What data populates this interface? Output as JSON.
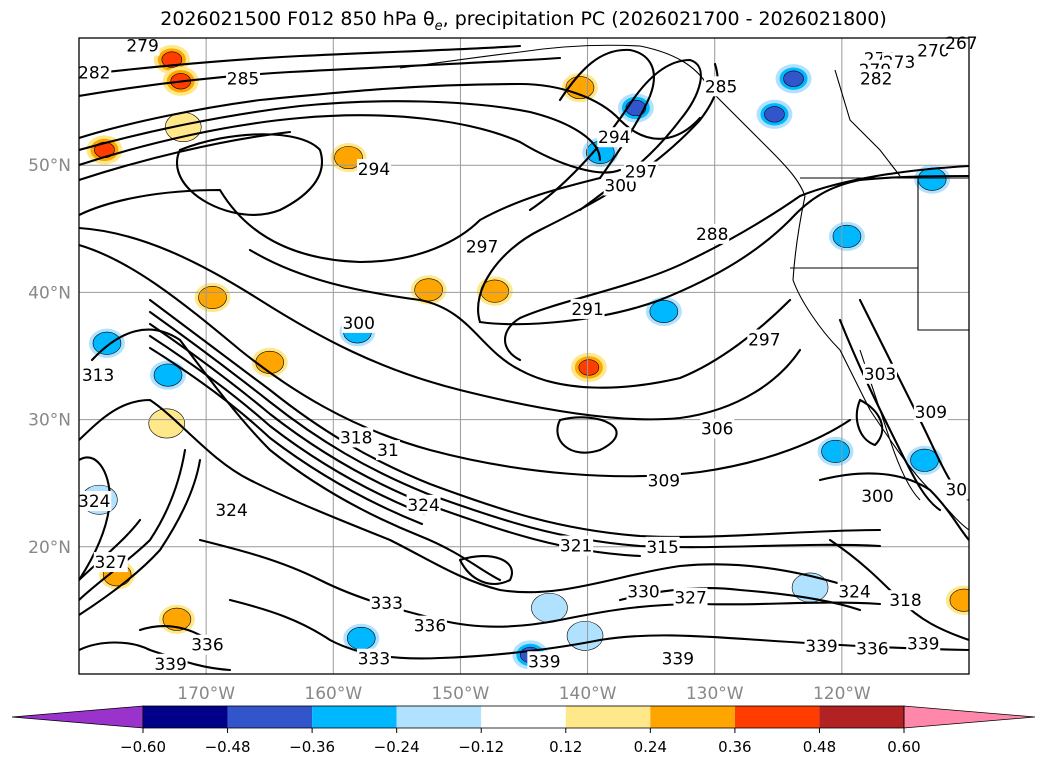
{
  "chart_data": {
    "type": "contour map",
    "title": "2026021500 F012 850 hPa θe, precipitation PC (2026021700 - 2026021800)",
    "lat_range": [
      10,
      60
    ],
    "lon_range": [
      -180,
      -110
    ],
    "lat_ticks": [
      "20°N",
      "30°N",
      "40°N",
      "50°N"
    ],
    "lon_ticks": [
      "170°W",
      "160°W",
      "150°W",
      "140°W",
      "130°W",
      "120°W"
    ],
    "grid": true,
    "contour_labels": [
      {
        "text": "279",
        "lon": -175.0,
        "lat": 59.4
      },
      {
        "text": "282",
        "lon": -178.8,
        "lat": 57.3
      },
      {
        "text": "285",
        "lon": -167.1,
        "lat": 56.8
      },
      {
        "text": "294",
        "lon": -156.8,
        "lat": 49.7
      },
      {
        "text": "294",
        "lon": -137.9,
        "lat": 52.2
      },
      {
        "text": "300",
        "lon": -137.4,
        "lat": 48.4
      },
      {
        "text": "297",
        "lon": -135.8,
        "lat": 49.5
      },
      {
        "text": "297",
        "lon": -148.3,
        "lat": 43.6
      },
      {
        "text": "288",
        "lon": -130.2,
        "lat": 44.6
      },
      {
        "text": "285",
        "lon": -129.5,
        "lat": 56.2
      },
      {
        "text": "291",
        "lon": -140.0,
        "lat": 38.7
      },
      {
        "text": "300",
        "lon": -158.0,
        "lat": 37.6
      },
      {
        "text": "297",
        "lon": -126.1,
        "lat": 36.3
      },
      {
        "text": "306",
        "lon": -129.8,
        "lat": 29.3
      },
      {
        "text": "309",
        "lon": -134.0,
        "lat": 25.2
      },
      {
        "text": "318",
        "lon": -158.2,
        "lat": 28.6
      },
      {
        "text": "31",
        "lon": -155.7,
        "lat": 27.6
      },
      {
        "text": "324",
        "lon": -152.9,
        "lat": 23.3
      },
      {
        "text": "324",
        "lon": -178.8,
        "lat": 23.6
      },
      {
        "text": "324",
        "lon": -168.0,
        "lat": 22.9
      },
      {
        "text": "327",
        "lon": -177.5,
        "lat": 18.8
      },
      {
        "text": "321",
        "lon": -140.9,
        "lat": 20.1
      },
      {
        "text": "315",
        "lon": -134.1,
        "lat": 20.0
      },
      {
        "text": "330",
        "lon": -135.6,
        "lat": 16.5
      },
      {
        "text": "327",
        "lon": -131.9,
        "lat": 16.0
      },
      {
        "text": "333",
        "lon": -155.8,
        "lat": 15.6
      },
      {
        "text": "336",
        "lon": -152.4,
        "lat": 13.8
      },
      {
        "text": "336",
        "lon": -169.9,
        "lat": 12.3
      },
      {
        "text": "339",
        "lon": -172.8,
        "lat": 10.8
      },
      {
        "text": "333",
        "lon": -156.8,
        "lat": 11.2
      },
      {
        "text": "339",
        "lon": -143.4,
        "lat": 11.0
      },
      {
        "text": "339",
        "lon": -132.9,
        "lat": 11.2
      },
      {
        "text": "339",
        "lon": -121.6,
        "lat": 12.2
      },
      {
        "text": "336",
        "lon": -117.6,
        "lat": 12.0
      },
      {
        "text": "339",
        "lon": -113.6,
        "lat": 12.4
      },
      {
        "text": "300",
        "lon": -117.2,
        "lat": 24.0
      },
      {
        "text": "303",
        "lon": -117.0,
        "lat": 33.6
      },
      {
        "text": "309",
        "lon": -113.0,
        "lat": 30.6
      },
      {
        "text": "30",
        "lon": -111.0,
        "lat": 24.5
      },
      {
        "text": "324",
        "lon": -119.0,
        "lat": 16.5
      },
      {
        "text": "318",
        "lon": -115.0,
        "lat": 15.8
      },
      {
        "text": "313",
        "lon": -178.5,
        "lat": 33.5
      },
      {
        "text": "270",
        "lon": -112.8,
        "lat": 59.0
      },
      {
        "text": "267",
        "lon": -110.6,
        "lat": 59.6
      },
      {
        "text": "276",
        "lon": -117.0,
        "lat": 58.4
      },
      {
        "text": "273",
        "lon": -115.5,
        "lat": 58.1
      },
      {
        "text": "279",
        "lon": -117.4,
        "lat": 57.5
      },
      {
        "text": "282",
        "lon": -117.3,
        "lat": 56.8
      }
    ],
    "colorbar": {
      "ticks": [
        "−0.60",
        "−0.48",
        "−0.36",
        "−0.24",
        "−0.12",
        "0.12",
        "0.24",
        "0.36",
        "0.48",
        "0.60"
      ],
      "bins": [
        {
          "range": "< -0.60",
          "color": "#9933cc"
        },
        {
          "range": "-0.60 to -0.48",
          "color": "#000088"
        },
        {
          "range": "-0.48 to -0.36",
          "color": "#3355cc"
        },
        {
          "range": "-0.36 to -0.24",
          "color": "#00b8ff"
        },
        {
          "range": "-0.24 to -0.12",
          "color": "#b0e2ff"
        },
        {
          "range": "-0.12 to 0.12",
          "color": "#ffffff"
        },
        {
          "range": "0.12 to 0.24",
          "color": "#ffe88a"
        },
        {
          "range": "0.24 to 0.36",
          "color": "#ffa500"
        },
        {
          "range": "0.36 to 0.48",
          "color": "#ff3d00"
        },
        {
          "range": "0.48 to 0.60",
          "color": "#b22222"
        },
        {
          "range": "> 0.60",
          "color": "#ff88aa"
        }
      ]
    },
    "precip_blobs": [
      {
        "lon": -172.7,
        "lat": 58.3,
        "value": 0.45
      },
      {
        "lon": -172.0,
        "lat": 56.6,
        "value": 0.42
      },
      {
        "lon": -178.0,
        "lat": 51.2,
        "value": 0.38
      },
      {
        "lon": -171.8,
        "lat": 53.0,
        "value": 0.22
      },
      {
        "lon": -158.8,
        "lat": 50.6,
        "value": 0.28
      },
      {
        "lon": -140.6,
        "lat": 56.1,
        "value": 0.25
      },
      {
        "lon": -136.2,
        "lat": 54.5,
        "value": -0.38
      },
      {
        "lon": -123.8,
        "lat": 56.8,
        "value": -0.45
      },
      {
        "lon": -125.3,
        "lat": 54.0,
        "value": -0.4
      },
      {
        "lon": -139.0,
        "lat": 51.0,
        "value": -0.28
      },
      {
        "lon": -134.0,
        "lat": 38.5,
        "value": -0.3
      },
      {
        "lon": -119.6,
        "lat": 44.4,
        "value": -0.34
      },
      {
        "lon": -112.9,
        "lat": 48.9,
        "value": -0.28
      },
      {
        "lon": -169.5,
        "lat": 39.6,
        "value": 0.34
      },
      {
        "lon": -173.1,
        "lat": 29.7,
        "value": 0.22
      },
      {
        "lon": -152.5,
        "lat": 40.2,
        "value": 0.26
      },
      {
        "lon": -147.3,
        "lat": 40.1,
        "value": 0.28
      },
      {
        "lon": -139.9,
        "lat": 34.1,
        "value": 0.38
      },
      {
        "lon": -158.1,
        "lat": 36.9,
        "value": -0.32
      },
      {
        "lon": -165.0,
        "lat": 34.5,
        "value": 0.3
      },
      {
        "lon": -120.5,
        "lat": 27.5,
        "value": -0.3
      },
      {
        "lon": -113.5,
        "lat": 26.8,
        "value": -0.28
      },
      {
        "lon": -177.8,
        "lat": 36.0,
        "value": -0.26
      },
      {
        "lon": -173.0,
        "lat": 33.5,
        "value": -0.24
      },
      {
        "lon": -178.4,
        "lat": 23.7,
        "value": -0.22
      },
      {
        "lon": -172.3,
        "lat": 14.3,
        "value": 0.34
      },
      {
        "lon": -177.0,
        "lat": 17.8,
        "value": 0.28
      },
      {
        "lon": -144.5,
        "lat": 11.5,
        "value": -0.45
      },
      {
        "lon": -157.8,
        "lat": 12.8,
        "value": -0.26
      },
      {
        "lon": -140.2,
        "lat": 13.0,
        "value": -0.22
      },
      {
        "lon": -143.0,
        "lat": 15.2,
        "value": -0.2
      },
      {
        "lon": -110.4,
        "lat": 15.8,
        "value": 0.34
      },
      {
        "lon": -122.5,
        "lat": 16.8,
        "value": -0.22
      }
    ]
  }
}
